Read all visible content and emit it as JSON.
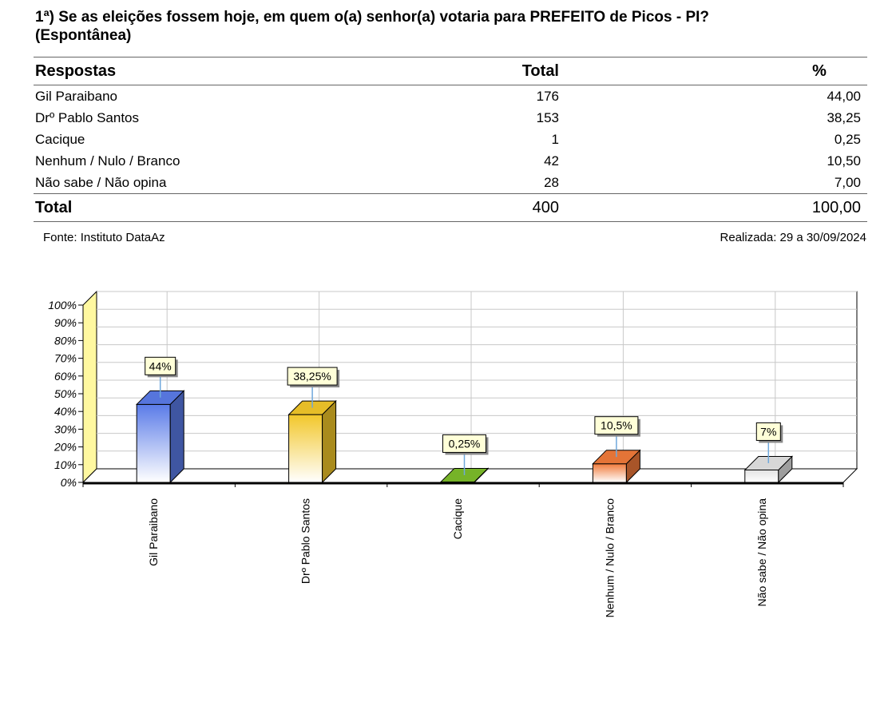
{
  "question": {
    "line1": "1ª) Se as eleições fossem hoje, em quem o(a) senhor(a) votaria para PREFEITO de Picos - PI?",
    "line2": "(Espontânea)"
  },
  "table": {
    "headers": {
      "answers": "Respostas",
      "total": "Total",
      "percent": "%"
    },
    "rows": [
      {
        "label": "Gil Paraibano",
        "total": "176",
        "percent": "44,00"
      },
      {
        "label": "Drº Pablo Santos",
        "total": "153",
        "percent": "38,25"
      },
      {
        "label": "Cacique",
        "total": "1",
        "percent": "0,25"
      },
      {
        "label": "Nenhum / Nulo / Branco",
        "total": "42",
        "percent": "10,50"
      },
      {
        "label": "Não sabe / Não opina",
        "total": "28",
        "percent": "7,00"
      }
    ],
    "footer": {
      "label": "Total",
      "total": "400",
      "percent": "100,00"
    }
  },
  "source": "Fonte: Instituto DataAz",
  "date": "Realizada:  29 a 30/09/2024",
  "chart_data": {
    "type": "bar",
    "categories": [
      "Gil Paraibano",
      "Drº Pablo Santos",
      "Cacique",
      "Nenhum / Nulo / Branco",
      "Não sabe / Não opina"
    ],
    "values": [
      44,
      38.25,
      0.25,
      10.5,
      7
    ],
    "data_labels": [
      "44%",
      "38,25%",
      "0,25%",
      "10,5%",
      "7%"
    ],
    "y_ticks": [
      "0%",
      "10%",
      "20%",
      "30%",
      "40%",
      "50%",
      "60%",
      "70%",
      "80%",
      "90%",
      "100%"
    ],
    "ylim": [
      0,
      100
    ],
    "grid": true,
    "three_d": true,
    "colors": [
      "#5a7be8",
      "#f2c72a",
      "#7cbc2a",
      "#f07a3a",
      "#e2e2e2"
    ],
    "wall_color": "#fff8a0"
  }
}
